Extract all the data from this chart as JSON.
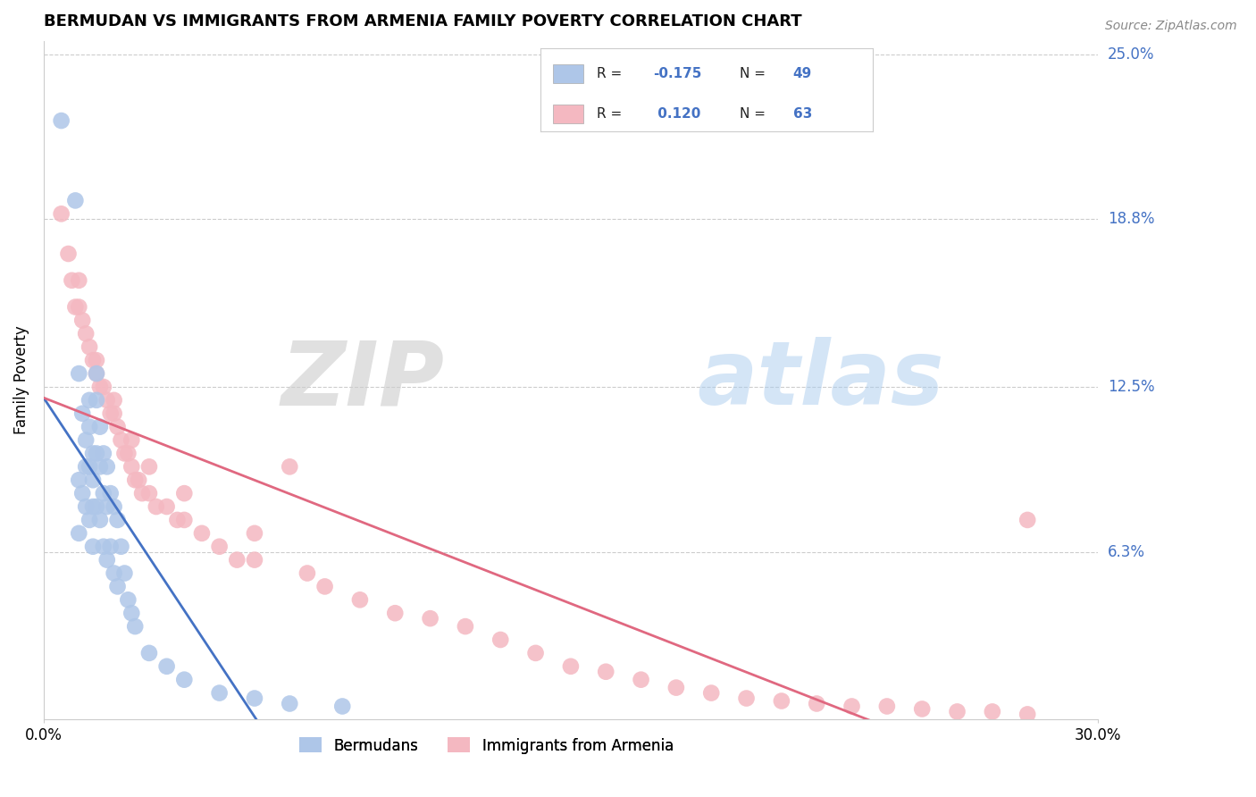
{
  "title": "BERMUDAN VS IMMIGRANTS FROM ARMENIA FAMILY POVERTY CORRELATION CHART",
  "source": "Source: ZipAtlas.com",
  "ylabel": "Family Poverty",
  "xlim": [
    0.0,
    0.3
  ],
  "ylim": [
    0.0,
    0.255
  ],
  "x_tick_labels": [
    "0.0%",
    "30.0%"
  ],
  "y_tick_labels": [
    "25.0%",
    "18.8%",
    "12.5%",
    "6.3%"
  ],
  "y_ticks": [
    0.25,
    0.188,
    0.125,
    0.063
  ],
  "legend_labels": [
    "Bermudans",
    "Immigrants from Armenia"
  ],
  "r_bermuda": -0.175,
  "n_bermuda": 49,
  "r_armenia": 0.12,
  "n_armenia": 63,
  "color_bermuda": "#aec6e8",
  "color_armenia": "#f4b8c1",
  "line_color_bermuda": "#4472c4",
  "line_color_armenia": "#e06880",
  "watermark_zip": "ZIP",
  "watermark_atlas": "atlas",
  "background_color": "#ffffff",
  "grid_color": "#cccccc",
  "bermuda_x": [
    0.005,
    0.009,
    0.01,
    0.01,
    0.01,
    0.011,
    0.011,
    0.012,
    0.012,
    0.012,
    0.013,
    0.013,
    0.013,
    0.013,
    0.014,
    0.014,
    0.014,
    0.014,
    0.015,
    0.015,
    0.015,
    0.015,
    0.016,
    0.016,
    0.016,
    0.017,
    0.017,
    0.017,
    0.018,
    0.018,
    0.018,
    0.019,
    0.019,
    0.02,
    0.02,
    0.021,
    0.021,
    0.022,
    0.023,
    0.024,
    0.025,
    0.026,
    0.03,
    0.035,
    0.04,
    0.05,
    0.06,
    0.07,
    0.085
  ],
  "bermuda_y": [
    0.225,
    0.195,
    0.13,
    0.09,
    0.07,
    0.115,
    0.085,
    0.105,
    0.095,
    0.08,
    0.12,
    0.11,
    0.095,
    0.075,
    0.1,
    0.09,
    0.08,
    0.065,
    0.13,
    0.12,
    0.1,
    0.08,
    0.11,
    0.095,
    0.075,
    0.1,
    0.085,
    0.065,
    0.095,
    0.08,
    0.06,
    0.085,
    0.065,
    0.08,
    0.055,
    0.075,
    0.05,
    0.065,
    0.055,
    0.045,
    0.04,
    0.035,
    0.025,
    0.02,
    0.015,
    0.01,
    0.008,
    0.006,
    0.005
  ],
  "armenia_x": [
    0.005,
    0.007,
    0.008,
    0.009,
    0.01,
    0.011,
    0.012,
    0.013,
    0.014,
    0.015,
    0.016,
    0.017,
    0.018,
    0.019,
    0.02,
    0.021,
    0.022,
    0.023,
    0.024,
    0.025,
    0.026,
    0.027,
    0.028,
    0.03,
    0.032,
    0.035,
    0.038,
    0.04,
    0.045,
    0.05,
    0.055,
    0.06,
    0.07,
    0.075,
    0.08,
    0.09,
    0.1,
    0.11,
    0.12,
    0.13,
    0.14,
    0.15,
    0.16,
    0.17,
    0.18,
    0.19,
    0.2,
    0.21,
    0.22,
    0.23,
    0.24,
    0.25,
    0.26,
    0.27,
    0.28,
    0.01,
    0.015,
    0.02,
    0.025,
    0.03,
    0.04,
    0.06,
    0.28
  ],
  "armenia_y": [
    0.19,
    0.175,
    0.165,
    0.155,
    0.165,
    0.15,
    0.145,
    0.14,
    0.135,
    0.13,
    0.125,
    0.125,
    0.12,
    0.115,
    0.115,
    0.11,
    0.105,
    0.1,
    0.1,
    0.095,
    0.09,
    0.09,
    0.085,
    0.085,
    0.08,
    0.08,
    0.075,
    0.075,
    0.07,
    0.065,
    0.06,
    0.06,
    0.095,
    0.055,
    0.05,
    0.045,
    0.04,
    0.038,
    0.035,
    0.03,
    0.025,
    0.02,
    0.018,
    0.015,
    0.012,
    0.01,
    0.008,
    0.007,
    0.006,
    0.005,
    0.005,
    0.004,
    0.003,
    0.003,
    0.002,
    0.155,
    0.135,
    0.12,
    0.105,
    0.095,
    0.085,
    0.07,
    0.075
  ]
}
